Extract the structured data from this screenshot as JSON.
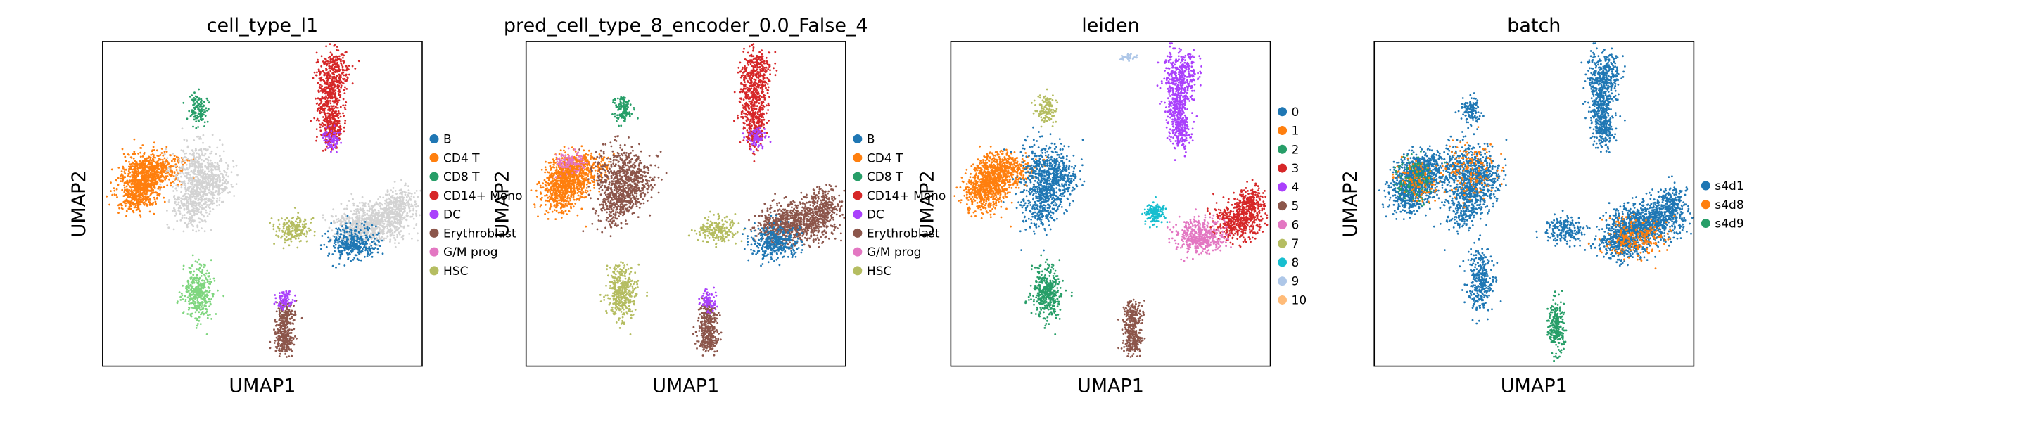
{
  "chart_data": [
    {
      "type": "scatter",
      "title": "cell_type_l1",
      "xlabel": "UMAP1",
      "ylabel": "UMAP2",
      "grid": false,
      "legend_position": "right",
      "legend": [
        {
          "label": "B",
          "color": "#1f77b4"
        },
        {
          "label": "CD4 T",
          "color": "#ff7f0e"
        },
        {
          "label": "CD8 T",
          "color": "#279e68"
        },
        {
          "label": "CD14+ Mono",
          "color": "#d62728"
        },
        {
          "label": "DC",
          "color": "#aa40fc"
        },
        {
          "label": "Erythroblast",
          "color": "#8c564b"
        },
        {
          "label": "G/M prog",
          "color": "#e377c2"
        },
        {
          "label": "HSC",
          "color": "#b5bd61"
        }
      ]
    },
    {
      "type": "scatter",
      "title": "pred_cell_type_8_encoder_0.0_False_4",
      "xlabel": "UMAP1",
      "ylabel": "UMAP2",
      "grid": false,
      "legend_position": "right",
      "legend": [
        {
          "label": "B",
          "color": "#1f77b4"
        },
        {
          "label": "CD4 T",
          "color": "#ff7f0e"
        },
        {
          "label": "CD8 T",
          "color": "#279e68"
        },
        {
          "label": "CD14+ Mono",
          "color": "#d62728"
        },
        {
          "label": "DC",
          "color": "#aa40fc"
        },
        {
          "label": "Erythroblast",
          "color": "#8c564b"
        },
        {
          "label": "G/M prog",
          "color": "#e377c2"
        },
        {
          "label": "HSC",
          "color": "#b5bd61"
        }
      ]
    },
    {
      "type": "scatter",
      "title": "leiden",
      "xlabel": "UMAP1",
      "ylabel": "UMAP2",
      "grid": false,
      "legend_position": "right",
      "legend": [
        {
          "label": "0",
          "color": "#1f77b4"
        },
        {
          "label": "1",
          "color": "#ff7f0e"
        },
        {
          "label": "2",
          "color": "#279e68"
        },
        {
          "label": "3",
          "color": "#d62728"
        },
        {
          "label": "4",
          "color": "#aa40fc"
        },
        {
          "label": "5",
          "color": "#8c564b"
        },
        {
          "label": "6",
          "color": "#e377c2"
        },
        {
          "label": "7",
          "color": "#b5bd61"
        },
        {
          "label": "8",
          "color": "#17becf"
        },
        {
          "label": "9",
          "color": "#aec7e8"
        },
        {
          "label": "10",
          "color": "#ffbb78"
        }
      ]
    },
    {
      "type": "scatter",
      "title": "batch",
      "xlabel": "UMAP1",
      "ylabel": "UMAP2",
      "grid": false,
      "legend_position": "right",
      "legend": [
        {
          "label": "s4d1",
          "color": "#1f77b4"
        },
        {
          "label": "s4d8",
          "color": "#ff7f0e"
        },
        {
          "label": "s4d9",
          "color": "#279e68"
        }
      ]
    }
  ]
}
